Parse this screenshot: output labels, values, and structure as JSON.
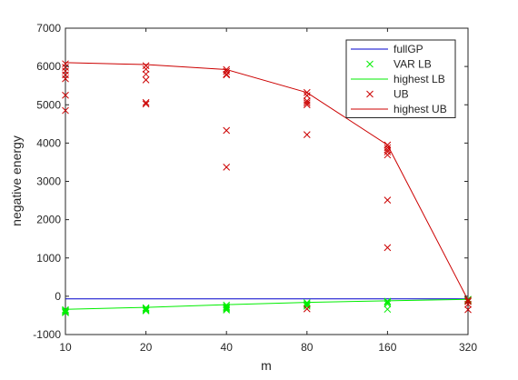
{
  "chart_data": {
    "type": "line",
    "title": "",
    "xlabel": "m",
    "ylabel": "negative energy",
    "x_scale": "log2",
    "x_ticks": [
      10,
      20,
      40,
      80,
      160,
      320
    ],
    "x_tick_labels": [
      "10",
      "20",
      "40",
      "80",
      "160",
      "320"
    ],
    "xlim": [
      10,
      320
    ],
    "y_ticks": [
      -1000,
      0,
      1000,
      2000,
      3000,
      4000,
      5000,
      6000,
      7000
    ],
    "y_tick_labels": [
      "-1000",
      "0",
      "1000",
      "2000",
      "3000",
      "4000",
      "5000",
      "6000",
      "7000"
    ],
    "ylim": [
      -1000,
      7000
    ],
    "grid": false,
    "legend_position": "top-right",
    "series": [
      {
        "name": "fullGP",
        "kind": "line",
        "color": "#0000cc",
        "points": [
          [
            10,
            -70
          ],
          [
            320,
            -70
          ]
        ]
      },
      {
        "name": "VAR LB",
        "kind": "scatter",
        "marker": "x",
        "color": "#00ee00",
        "points": [
          [
            10,
            -350
          ],
          [
            10,
            -370
          ],
          [
            10,
            -390
          ],
          [
            10,
            -410
          ],
          [
            10,
            -430
          ],
          [
            20,
            -300
          ],
          [
            20,
            -330
          ],
          [
            20,
            -360
          ],
          [
            20,
            -380
          ],
          [
            40,
            -230
          ],
          [
            40,
            -270
          ],
          [
            40,
            -300
          ],
          [
            40,
            -330
          ],
          [
            40,
            -360
          ],
          [
            80,
            -170
          ],
          [
            80,
            -200
          ],
          [
            80,
            -230
          ],
          [
            80,
            -260
          ],
          [
            160,
            -130
          ],
          [
            160,
            -160
          ],
          [
            160,
            -200
          ],
          [
            160,
            -340
          ],
          [
            320,
            -80
          ],
          [
            320,
            -100
          ],
          [
            320,
            -120
          ]
        ]
      },
      {
        "name": "highest LB",
        "kind": "line",
        "color": "#00ee00",
        "points": [
          [
            10,
            -340
          ],
          [
            20,
            -290
          ],
          [
            40,
            -220
          ],
          [
            80,
            -160
          ],
          [
            160,
            -120
          ],
          [
            320,
            -80
          ]
        ]
      },
      {
        "name": "UB",
        "kind": "scatter",
        "marker": "x",
        "color": "#cc0000",
        "points": [
          [
            10,
            6070
          ],
          [
            10,
            5980
          ],
          [
            10,
            5880
          ],
          [
            10,
            5780
          ],
          [
            10,
            5680
          ],
          [
            10,
            5250
          ],
          [
            10,
            4850
          ],
          [
            20,
            6020
          ],
          [
            20,
            5930
          ],
          [
            20,
            5800
          ],
          [
            20,
            5650
          ],
          [
            20,
            5060
          ],
          [
            20,
            5020
          ],
          [
            40,
            5920
          ],
          [
            40,
            5870
          ],
          [
            40,
            5800
          ],
          [
            40,
            5780
          ],
          [
            40,
            4330
          ],
          [
            40,
            3370
          ],
          [
            80,
            5320
          ],
          [
            80,
            5240
          ],
          [
            80,
            5100
          ],
          [
            80,
            5050
          ],
          [
            80,
            5000
          ],
          [
            80,
            4220
          ],
          [
            80,
            -330
          ],
          [
            160,
            3950
          ],
          [
            160,
            3880
          ],
          [
            160,
            3820
          ],
          [
            160,
            3770
          ],
          [
            160,
            3690
          ],
          [
            160,
            2510
          ],
          [
            160,
            1270
          ],
          [
            320,
            -100
          ],
          [
            320,
            -140
          ],
          [
            320,
            -210
          ],
          [
            320,
            -350
          ]
        ]
      },
      {
        "name": "highest UB",
        "kind": "line",
        "color": "#cc0000",
        "points": [
          [
            10,
            6100
          ],
          [
            20,
            6050
          ],
          [
            40,
            5920
          ],
          [
            80,
            5320
          ],
          [
            160,
            3950
          ],
          [
            320,
            -100
          ]
        ]
      }
    ]
  }
}
